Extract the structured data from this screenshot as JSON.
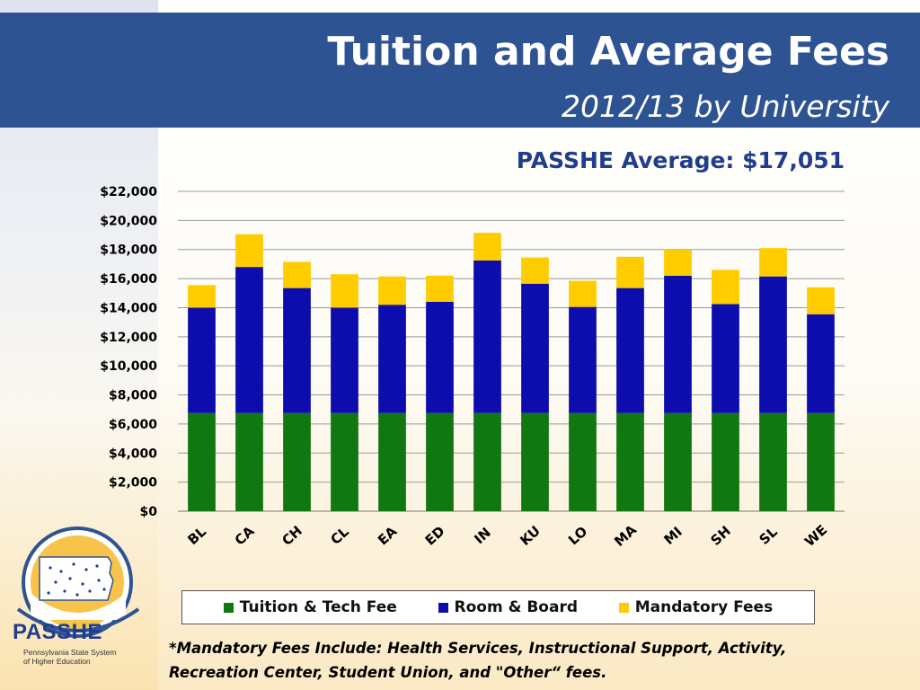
{
  "header": {
    "title": "Tuition and Average Fees",
    "subtitle": "2012/13 by University"
  },
  "chart_data": {
    "type": "bar",
    "stacked": true,
    "annotation": "PASSHE Average: $17,051",
    "categories": [
      "BL",
      "CA",
      "CH",
      "CL",
      "EA",
      "ED",
      "IN",
      "KU",
      "LO",
      "MA",
      "MI",
      "SH",
      "SL",
      "WE"
    ],
    "series": [
      {
        "name": "Tuition & Tech Fee",
        "color": "#117711",
        "values": [
          6750,
          6750,
          6750,
          6750,
          6750,
          6750,
          6750,
          6750,
          6750,
          6750,
          6750,
          6750,
          6750,
          6750
        ]
      },
      {
        "name": "Room & Board",
        "color": "#0d0dad",
        "values": [
          7250,
          10050,
          8600,
          7250,
          7450,
          7650,
          10500,
          8900,
          7300,
          8600,
          9450,
          7500,
          9400,
          6800
        ]
      },
      {
        "name": "Mandatory Fees",
        "color": "#ffcc00",
        "values": [
          1550,
          2250,
          1800,
          2300,
          1950,
          1800,
          1900,
          1800,
          1800,
          2150,
          1800,
          2350,
          1950,
          1850
        ]
      }
    ],
    "ylim": [
      0,
      22000
    ],
    "yticks": [
      0,
      2000,
      4000,
      6000,
      8000,
      10000,
      12000,
      14000,
      16000,
      18000,
      20000,
      22000
    ],
    "ytick_labels": [
      "$0",
      "$2,000",
      "$4,000",
      "$6,000",
      "$8,000",
      "$10,000",
      "$12,000",
      "$14,000",
      "$16,000",
      "$18,000",
      "$20,000",
      "$22,000"
    ],
    "grid": true,
    "legend_position": "bottom"
  },
  "footnote": {
    "line1": "*Mandatory Fees Include: Health Services, Instructional Support, Activity,",
    "line2": "Recreation Center, Student Union, and \"Other“ fees."
  },
  "logo": {
    "word": "PASSHE",
    "sub1": "Pennsylvania State System",
    "sub2": "of Higher Education"
  }
}
